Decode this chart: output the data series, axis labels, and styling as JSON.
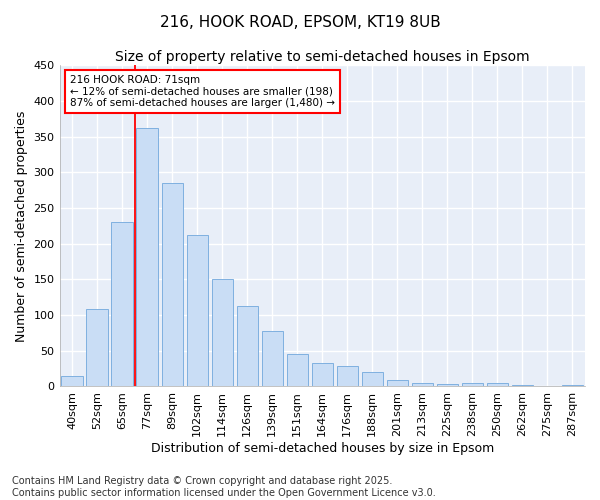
{
  "title1": "216, HOOK ROAD, EPSOM, KT19 8UB",
  "title2": "Size of property relative to semi-detached houses in Epsom",
  "xlabel": "Distribution of semi-detached houses by size in Epsom",
  "ylabel": "Number of semi-detached properties",
  "categories": [
    "40sqm",
    "52sqm",
    "65sqm",
    "77sqm",
    "89sqm",
    "102sqm",
    "114sqm",
    "126sqm",
    "139sqm",
    "151sqm",
    "164sqm",
    "176sqm",
    "188sqm",
    "201sqm",
    "213sqm",
    "225sqm",
    "238sqm",
    "250sqm",
    "262sqm",
    "275sqm",
    "287sqm"
  ],
  "values": [
    15,
    108,
    230,
    362,
    285,
    212,
    150,
    112,
    78,
    45,
    33,
    28,
    20,
    9,
    5,
    4,
    5,
    5,
    2,
    1,
    2
  ],
  "bar_color": "#c9ddf5",
  "bar_edge_color": "#7fb0e0",
  "vline_bar_index": 2,
  "annotation_title": "216 HOOK ROAD: 71sqm",
  "annotation_line1": "← 12% of semi-detached houses are smaller (198)",
  "annotation_line2": "87% of semi-detached houses are larger (1,480) →",
  "footer1": "Contains HM Land Registry data © Crown copyright and database right 2025.",
  "footer2": "Contains public sector information licensed under the Open Government Licence v3.0.",
  "ylim": [
    0,
    450
  ],
  "yticks": [
    0,
    50,
    100,
    150,
    200,
    250,
    300,
    350,
    400,
    450
  ],
  "bg_color": "#ffffff",
  "plot_bg_color": "#e8eef8",
  "grid_color": "#ffffff",
  "title_fontsize": 11,
  "subtitle_fontsize": 10,
  "axis_label_fontsize": 9,
  "tick_fontsize": 8,
  "footer_fontsize": 7
}
